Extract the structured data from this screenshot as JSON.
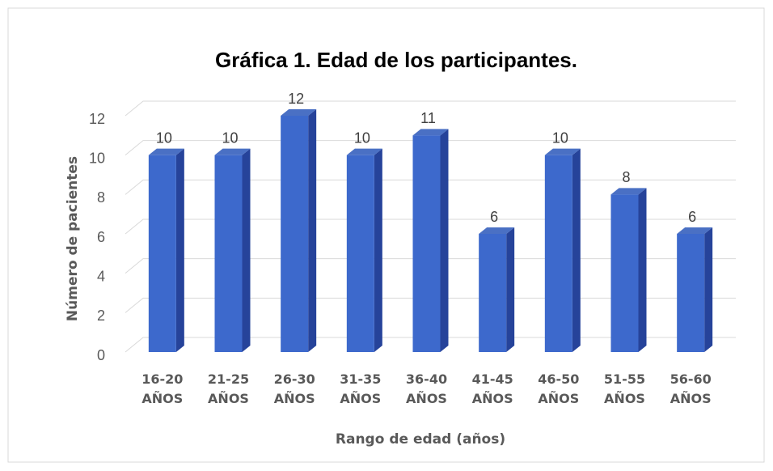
{
  "chart_data": {
    "type": "bar3d",
    "title": "Gráfica 1. Edad de los participantes.",
    "xlabel": "Rango de edad (años)",
    "ylabel": "Número de pacientes",
    "categories": [
      "16-20 AÑOS",
      "21-25 AÑOS",
      "26-30 AÑOS",
      "31-35 AÑOS",
      "36-40 AÑOS",
      "41-45 AÑOS",
      "46-50 AÑOS",
      "51-55 AÑOS",
      "56-60 AÑOS"
    ],
    "values": [
      10,
      10,
      12,
      10,
      11,
      6,
      10,
      8,
      6
    ],
    "color": "#3d69cc",
    "ylim": [
      0,
      12
    ],
    "yticks": [
      0,
      2,
      4,
      6,
      8,
      10,
      12
    ],
    "grid": true
  }
}
